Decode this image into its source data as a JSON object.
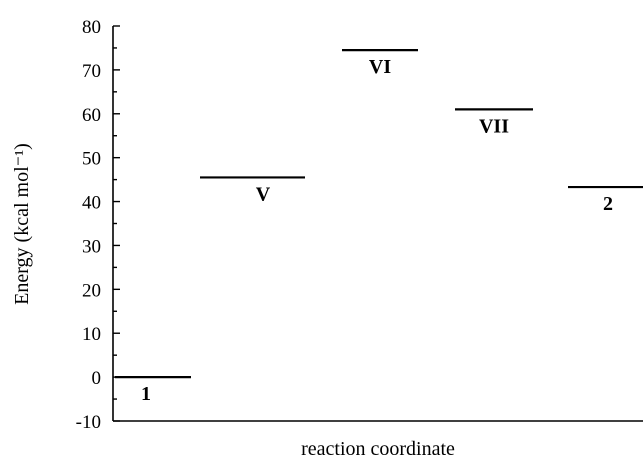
{
  "chart_data": {
    "type": "energy-level diagram",
    "xlabel": "reaction coordinate",
    "ylabel": "Energy (kcal mol⁻¹)",
    "ylim": [
      -10,
      80
    ],
    "yticks": [
      -10,
      0,
      10,
      20,
      30,
      40,
      50,
      60,
      70,
      80
    ],
    "ytick_labels": [
      "-10",
      "0",
      "10",
      "20",
      "30",
      "40",
      "50",
      "60",
      "70",
      "80"
    ],
    "categories": [
      "1",
      "V",
      "VI",
      "VII",
      "2"
    ],
    "values": [
      0,
      45.5,
      74.5,
      61,
      43.3
    ],
    "line_color": "#000000",
    "grid": false,
    "legend": "none"
  }
}
